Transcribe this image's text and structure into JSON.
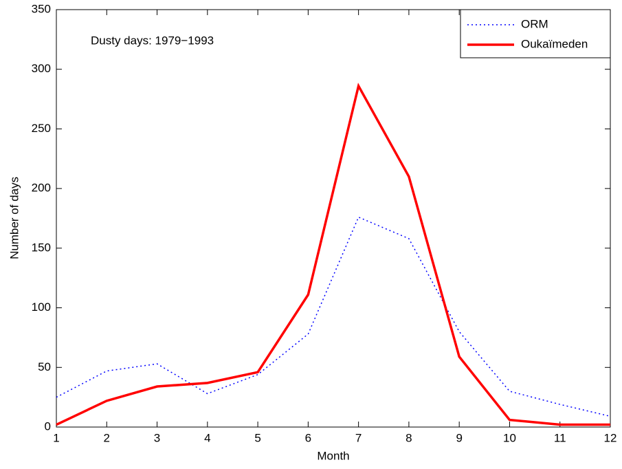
{
  "chart_data": {
    "type": "line",
    "x": [
      1,
      2,
      3,
      4,
      5,
      6,
      7,
      8,
      9,
      10,
      11,
      12
    ],
    "xlabel": "Month",
    "ylabel": "Number of days",
    "annotation": "Dusty days: 1979−1993",
    "series": [
      {
        "name": "ORM",
        "color": "#0000ff",
        "style": "dotted",
        "values": [
          25,
          47,
          53,
          28,
          44,
          78,
          176,
          158,
          80,
          30,
          19,
          9
        ]
      },
      {
        "name": "Oukaïmeden",
        "color": "#ff0000",
        "style": "solid",
        "values": [
          2,
          22,
          34,
          37,
          46,
          111,
          286,
          210,
          59,
          6,
          2,
          2
        ]
      }
    ],
    "xlim": [
      1,
      12
    ],
    "ylim": [
      0,
      350
    ],
    "xticks": [
      1,
      2,
      3,
      4,
      5,
      6,
      7,
      8,
      9,
      10,
      11,
      12
    ],
    "yticks": [
      0,
      50,
      100,
      150,
      200,
      250,
      300,
      350
    ],
    "grid": false,
    "legend": "upper-right"
  }
}
